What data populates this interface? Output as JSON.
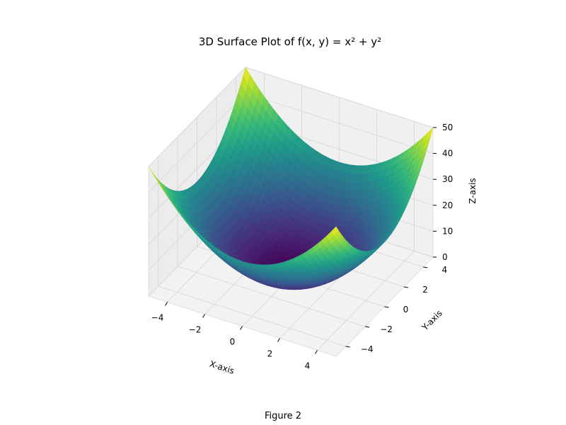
{
  "caption": "Figure 2",
  "chart_data": {
    "type": "surface3d",
    "title": "3D Surface Plot of f(x, y) = x² + y²",
    "function": "x^2 + y^2",
    "xlabel": "X-axis",
    "ylabel": "Y-axis",
    "zlabel": "Z-axis",
    "xlim": [
      -5,
      5
    ],
    "ylim": [
      -5,
      5
    ],
    "zlim": [
      0,
      50
    ],
    "xticks": [
      -4,
      -2,
      0,
      2,
      4
    ],
    "xtick_labels": [
      "−4",
      "−2",
      "0",
      "2",
      "4"
    ],
    "yticks": [
      -4,
      -2,
      0,
      2,
      4
    ],
    "ytick_labels": [
      "−4",
      "−2",
      "0",
      "2",
      "4"
    ],
    "zticks": [
      0,
      10,
      20,
      30,
      40,
      50
    ],
    "ztick_labels": [
      "0",
      "10",
      "20",
      "30",
      "40",
      "50"
    ],
    "colormap": "viridis",
    "grid": true,
    "samples": [
      {
        "x": -5,
        "y": -5,
        "z": 50
      },
      {
        "x": 5,
        "y": -5,
        "z": 50
      },
      {
        "x": -5,
        "y": 5,
        "z": 50
      },
      {
        "x": 5,
        "y": 5,
        "z": 50
      },
      {
        "x": 0,
        "y": 0,
        "z": 0
      },
      {
        "x": 0,
        "y": -5,
        "z": 25
      },
      {
        "x": -5,
        "y": 0,
        "z": 25
      },
      {
        "x": 5,
        "y": 0,
        "z": 25
      },
      {
        "x": 0,
        "y": 5,
        "z": 25
      }
    ]
  }
}
